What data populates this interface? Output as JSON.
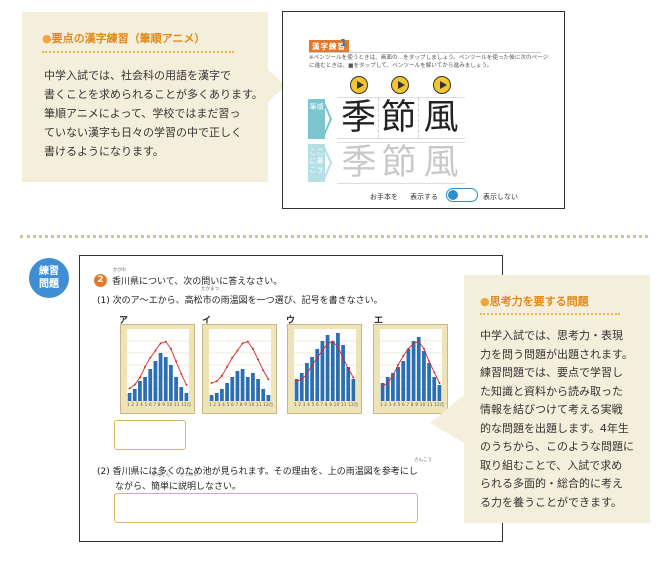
{
  "top_callout": {
    "title": "要点の漢字練習（筆順アニメ）",
    "bullet": "●",
    "lines": [
      "中学入試では、社会科の用語を漢字で",
      "書くことを求められることが多くあります。",
      "筆順アニメによって、学校ではまだ習っ",
      "ていない漢字も日々の学習の中で正しく",
      "書けるようになります。"
    ]
  },
  "screen": {
    "tag": "漢字練習",
    "number": "1",
    "note_lines": [
      "※ペンツールを使うときは、画面の…をタップしましょう。ペンツールを使った後に次のページ",
      "に進むときは、■をタップして、ペンツールを解いてから進みましょう。"
    ],
    "label_top": "筆順",
    "label_bottom": "ここに書こう",
    "kanji": [
      "季",
      "節",
      "風"
    ],
    "otehon": "お手本を",
    "show_on": "表示する",
    "show_off": "表示しない"
  },
  "practice": {
    "badge": [
      "練習",
      "問題"
    ],
    "q_number": "2",
    "q_title": "香川県について、次の問いに答えなさい。",
    "q1": "(1) 次のア〜エから、高松市の雨温図を一つ選び、記号を書きなさい。",
    "chart_labels": [
      "ア",
      "イ",
      "ウ",
      "エ"
    ],
    "axis_months": "1 2 3 4 5 6 7 8 9 10 11 12月",
    "q2_line1": "(2) 香川県には多くのため池が見られます。その理由を、上の雨温図を参考にし",
    "q2_line2": "ながら、簡単に説明しなさい。",
    "ruby": {
      "kagawa": "かがわ",
      "takamatsu": "たかまつ",
      "sankou": "さんこう",
      "kantan": "かんたん",
      "setsumei": "せつめい"
    }
  },
  "right_callout": {
    "title": "思考力を要する問題",
    "bullet": "●",
    "lines": [
      "中学入試では、思考力・表現",
      "力を問う問題が出題されます。",
      "練習問題では、要点で学習し",
      "た知識と資料から読み取った",
      "情報を結びつけて考える実戦",
      "的な問題を出題します。4年生",
      "のうちから、このような問題に",
      "取り組むことで、入試で求め",
      "られる多面的・総合的に考え",
      "る力を養うことができます。"
    ]
  },
  "chart_data": [
    {
      "type": "bar",
      "name": "ア",
      "categories": [
        "1",
        "2",
        "3",
        "4",
        "5",
        "6",
        "7",
        "8",
        "9",
        "10",
        "11",
        "12"
      ],
      "precipitation": [
        20,
        30,
        50,
        60,
        80,
        100,
        120,
        110,
        90,
        60,
        35,
        20
      ],
      "temperature": [
        2,
        4,
        8,
        14,
        19,
        23,
        27,
        28,
        24,
        17,
        10,
        4
      ]
    },
    {
      "type": "bar",
      "name": "イ",
      "categories": [
        "1",
        "2",
        "3",
        "4",
        "5",
        "6",
        "7",
        "8",
        "9",
        "10",
        "11",
        "12"
      ],
      "precipitation": [
        15,
        20,
        30,
        45,
        60,
        75,
        80,
        60,
        70,
        55,
        30,
        15
      ],
      "temperature": [
        5,
        6,
        9,
        14,
        19,
        23,
        27,
        28,
        24,
        18,
        12,
        7
      ]
    },
    {
      "type": "bar",
      "name": "ウ",
      "categories": [
        "1",
        "2",
        "3",
        "4",
        "5",
        "6",
        "7",
        "8",
        "9",
        "10",
        "11",
        "12"
      ],
      "precipitation": [
        55,
        70,
        95,
        110,
        130,
        150,
        165,
        150,
        170,
        140,
        85,
        55
      ],
      "temperature": [
        6,
        7,
        10,
        15,
        19,
        23,
        27,
        28,
        25,
        19,
        13,
        8
      ]
    },
    {
      "type": "bar",
      "name": "エ",
      "categories": [
        "1",
        "2",
        "3",
        "4",
        "5",
        "6",
        "7",
        "8",
        "9",
        "10",
        "11",
        "12"
      ],
      "precipitation": [
        45,
        60,
        70,
        85,
        100,
        130,
        150,
        160,
        125,
        95,
        60,
        40
      ],
      "temperature": [
        3,
        5,
        9,
        15,
        20,
        24,
        27,
        28,
        24,
        17,
        11,
        5
      ]
    }
  ]
}
